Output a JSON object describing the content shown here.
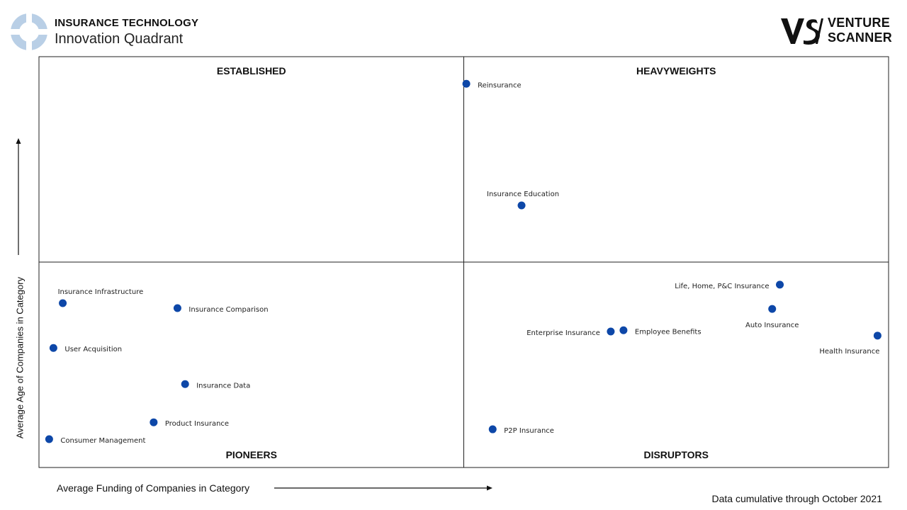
{
  "header": {
    "title": "INSURANCE TECHNOLOGY",
    "subtitle": "Innovation Quadrant",
    "logo_icon": "quadrant-ring-icon"
  },
  "brand": {
    "line1": "VENTURE",
    "line2": "SCANNER",
    "mark_icon": "vs-logo-icon"
  },
  "footnote": "Data cumulative through October 2021",
  "colors": {
    "point": "#0d47a8",
    "logo": "#b9cfe6",
    "frame": "#222222"
  },
  "chart_data": {
    "type": "scatter",
    "title": "",
    "xlabel": "Average Funding of Companies in Category",
    "ylabel": "Average Age of Companies in Category",
    "xlim": [
      0,
      100
    ],
    "ylim": [
      0,
      100
    ],
    "grid": false,
    "legend": "none",
    "quadrants": {
      "top_left": "ESTABLISHED",
      "top_right": "HEAVYWEIGHTS",
      "bottom_left": "PIONEERS",
      "bottom_right": "DISRUPTORS"
    },
    "points": [
      {
        "name": "Reinsurance",
        "x": 50.3,
        "y": 93.4,
        "label_pos": "right"
      },
      {
        "name": "Insurance Education",
        "x": 56.8,
        "y": 63.8,
        "label_pos": "above"
      },
      {
        "name": "Life, Home, P&C Insurance",
        "x": 87.2,
        "y": 44.5,
        "label_pos": "left"
      },
      {
        "name": "Auto Insurance",
        "x": 86.3,
        "y": 38.6,
        "label_pos": "below"
      },
      {
        "name": "Enterprise Insurance",
        "x": 67.3,
        "y": 33.1,
        "label_pos": "left"
      },
      {
        "name": "Employee Benefits",
        "x": 68.8,
        "y": 33.4,
        "label_pos": "right"
      },
      {
        "name": "Health Insurance",
        "x": 98.7,
        "y": 32.1,
        "label_pos": "below-left"
      },
      {
        "name": "P2P Insurance",
        "x": 53.4,
        "y": 9.3,
        "label_pos": "right"
      },
      {
        "name": "Insurance Infrastructure",
        "x": 2.8,
        "y": 40.0,
        "label_pos": "above"
      },
      {
        "name": "Insurance Comparison",
        "x": 16.3,
        "y": 38.8,
        "label_pos": "right"
      },
      {
        "name": "User Acquisition",
        "x": 1.7,
        "y": 29.1,
        "label_pos": "right"
      },
      {
        "name": "Insurance Data",
        "x": 17.2,
        "y": 20.3,
        "label_pos": "right"
      },
      {
        "name": "Product Insurance",
        "x": 13.5,
        "y": 11.0,
        "label_pos": "right"
      },
      {
        "name": "Consumer Management",
        "x": 1.2,
        "y": 6.9,
        "label_pos": "right"
      }
    ]
  }
}
